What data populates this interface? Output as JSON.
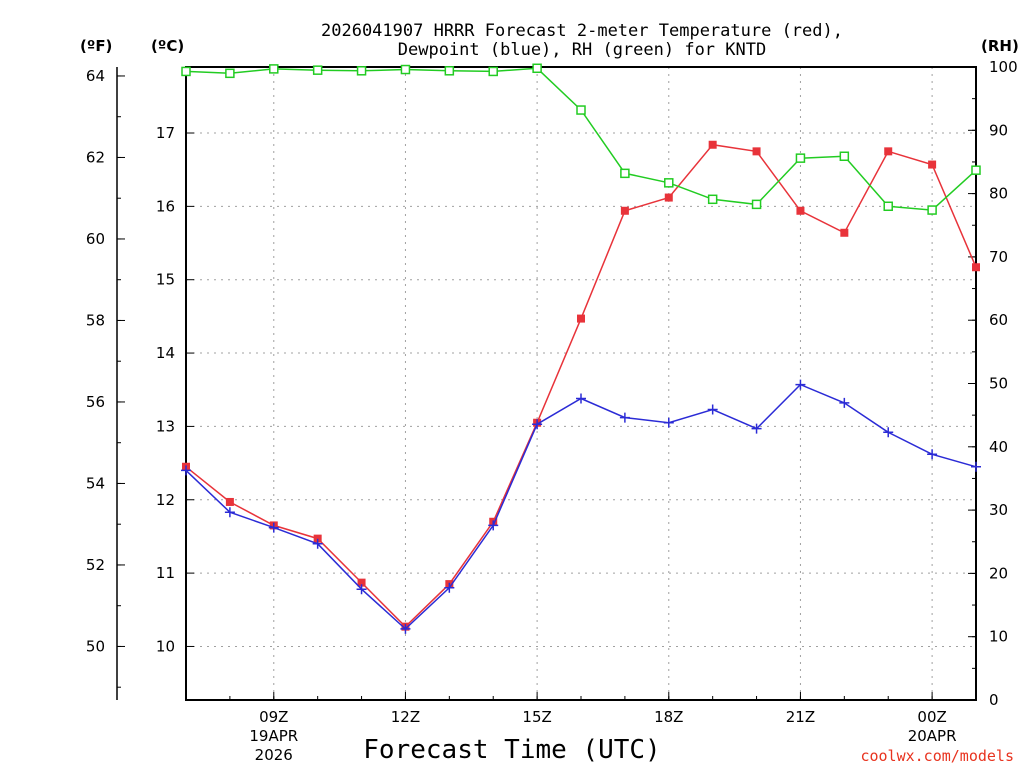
{
  "chart_data": {
    "type": "line",
    "title_line1": "2026041907 HRRR Forecast 2-meter Temperature (red),",
    "title_line2": "Dewpoint (blue), RH (green) for KNTD",
    "xlabel": "Forecast Time (UTC)",
    "credit": "coolwx.com/models",
    "axis_units": {
      "fahrenheit": "(ºF)",
      "celsius": "(ºC)",
      "rh": "(RH)"
    },
    "x": [
      7,
      8,
      9,
      10,
      11,
      12,
      13,
      14,
      15,
      16,
      17,
      18,
      19,
      20,
      21,
      22,
      23,
      24,
      25
    ],
    "xlim": [
      7,
      25
    ],
    "x_ticks": [
      {
        "x": 9,
        "label": "09Z",
        "sub1": "19APR",
        "sub2": "2026"
      },
      {
        "x": 12,
        "label": "12Z"
      },
      {
        "x": 15,
        "label": "15Z"
      },
      {
        "x": 18,
        "label": "18Z"
      },
      {
        "x": 21,
        "label": "21Z"
      },
      {
        "x": 24,
        "label": "00Z",
        "sub1": "20APR"
      }
    ],
    "celsius_ylim": [
      9.27,
      17.9
    ],
    "celsius_ticks": [
      10,
      11,
      12,
      13,
      14,
      15,
      16,
      17
    ],
    "fahrenheit_ticks": [
      50,
      52,
      54,
      56,
      58,
      60,
      62,
      64
    ],
    "rh_ylim": [
      0,
      100
    ],
    "rh_ticks": [
      0,
      10,
      20,
      30,
      40,
      50,
      60,
      70,
      80,
      90,
      100
    ],
    "series": [
      {
        "name": "Temperature",
        "units": "C",
        "color": "#e8333a",
        "marker": "filled-square",
        "values": [
          12.45,
          11.97,
          11.65,
          11.47,
          10.87,
          10.27,
          10.85,
          11.7,
          13.05,
          14.47,
          15.94,
          16.12,
          16.84,
          16.75,
          15.94,
          15.64,
          16.75,
          16.57,
          15.17
        ]
      },
      {
        "name": "Dewpoint",
        "units": "C",
        "color": "#2b2bd6",
        "marker": "plus",
        "values": [
          12.4,
          11.83,
          11.62,
          11.4,
          10.78,
          10.24,
          10.8,
          11.65,
          13.03,
          13.38,
          13.12,
          13.05,
          13.23,
          12.97,
          13.57,
          13.32,
          12.92,
          12.62,
          12.45
        ]
      },
      {
        "name": "RH",
        "units": "%",
        "color": "#22cc22",
        "marker": "open-square",
        "values": [
          99.3,
          99.0,
          99.7,
          99.5,
          99.4,
          99.6,
          99.4,
          99.3,
          99.8,
          93.2,
          83.2,
          81.7,
          79.1,
          78.3,
          85.6,
          85.9,
          78.0,
          77.4,
          83.7
        ]
      }
    ]
  }
}
